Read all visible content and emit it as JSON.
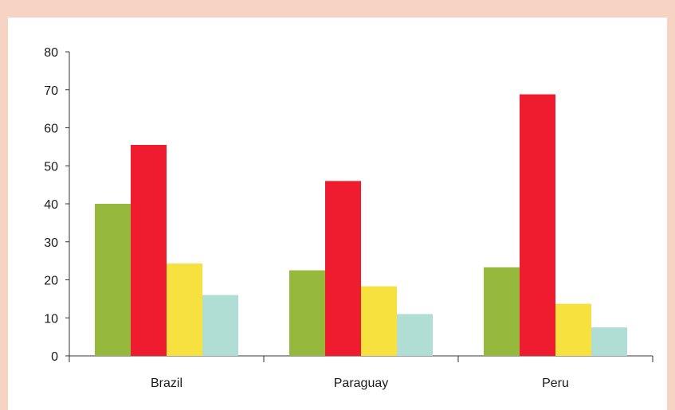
{
  "chart_data": {
    "type": "bar",
    "title": "",
    "xlabel": "",
    "ylabel": "",
    "categories": [
      "Brazil",
      "Paraguay",
      "Peru"
    ],
    "series": [
      {
        "values": [
          40,
          22.5,
          23.3
        ],
        "color": "#96b83c"
      },
      {
        "values": [
          55.5,
          46,
          68.8
        ],
        "color": "#ee1c2e"
      },
      {
        "values": [
          24.3,
          18.3,
          13.7
        ],
        "color": "#f6e13f"
      },
      {
        "values": [
          16,
          11,
          7.5
        ],
        "color": "#b1ded4"
      }
    ],
    "ylim": [
      0,
      80
    ],
    "yticks": [
      0,
      10,
      20,
      30,
      40,
      50,
      60,
      70,
      80
    ],
    "grid": false,
    "legend": "none"
  },
  "colors": {
    "page_background": "#f7d3c3",
    "plot_background": "#ffffff",
    "axis": "#333333"
  }
}
